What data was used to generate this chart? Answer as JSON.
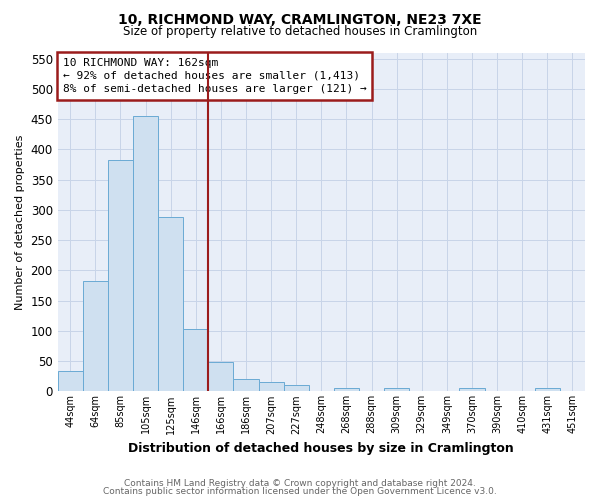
{
  "title1": "10, RICHMOND WAY, CRAMLINGTON, NE23 7XE",
  "title2": "Size of property relative to detached houses in Cramlington",
  "xlabel": "Distribution of detached houses by size in Cramlington",
  "ylabel": "Number of detached properties",
  "footnote1": "Contains HM Land Registry data © Crown copyright and database right 2024.",
  "footnote2": "Contains public sector information licensed under the Open Government Licence v3.0.",
  "property_label": "10 RICHMOND WAY: 162sqm",
  "smaller_label": "← 92% of detached houses are smaller (1,413)",
  "larger_label": "8% of semi-detached houses are larger (121) →",
  "bar_color": "#cfe0f0",
  "bar_edge_color": "#6aaad4",
  "vline_color": "#9b1c1c",
  "annotation_box_edge": "#9b1c1c",
  "categories": [
    "44sqm",
    "64sqm",
    "85sqm",
    "105sqm",
    "125sqm",
    "146sqm",
    "166sqm",
    "186sqm",
    "207sqm",
    "227sqm",
    "248sqm",
    "268sqm",
    "288sqm",
    "309sqm",
    "329sqm",
    "349sqm",
    "370sqm",
    "390sqm",
    "410sqm",
    "431sqm",
    "451sqm"
  ],
  "values": [
    33,
    183,
    383,
    455,
    288,
    103,
    48,
    21,
    15,
    10,
    0,
    5,
    0,
    5,
    0,
    0,
    5,
    0,
    0,
    5,
    0
  ],
  "ylim": [
    0,
    560
  ],
  "yticks": [
    0,
    50,
    100,
    150,
    200,
    250,
    300,
    350,
    400,
    450,
    500,
    550
  ],
  "grid_color": "#c8d4e8",
  "bg_color": "#e8eef8",
  "vline_index": 6
}
